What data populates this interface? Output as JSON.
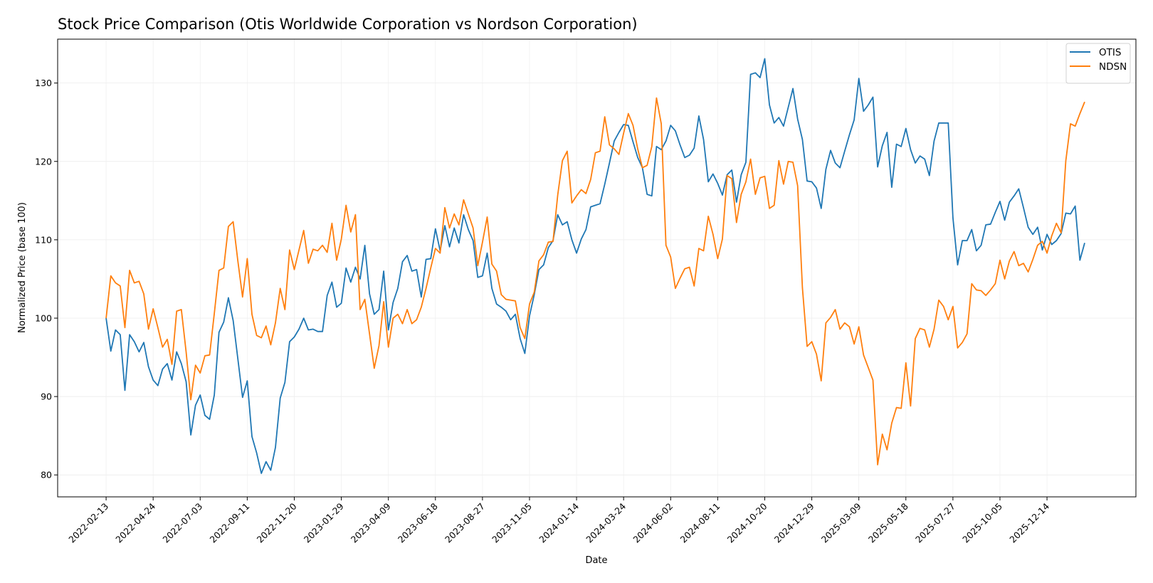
{
  "chart_data": {
    "type": "line",
    "title": "Stock Price Comparison (Otis Worldwide Corporation vs Nordson Corporation)",
    "xlabel": "Date",
    "ylabel": "Normalized Price (base 100)",
    "x_start": "2022-02-13",
    "x_frequency": "weekly",
    "x_tick_labels": [
      "2022-02-13",
      "2022-04-24",
      "2022-07-03",
      "2022-09-11",
      "2022-11-20",
      "2023-01-29",
      "2023-04-09",
      "2023-06-18",
      "2023-08-27",
      "2023-11-05",
      "2024-01-14",
      "2024-03-24",
      "2024-06-02",
      "2024-08-11",
      "2024-10-20",
      "2024-12-29",
      "2025-03-09",
      "2025-05-18",
      "2025-07-27",
      "2025-10-05",
      "2025-12-14"
    ],
    "x_tick_interval_weeks": 10,
    "y_ticks": [
      80,
      90,
      100,
      110,
      120,
      130
    ],
    "ylim": [
      77.2,
      135.6
    ],
    "xlim_weeks": [
      -10.3,
      218.9
    ],
    "grid": true,
    "legend_position": "top-right",
    "series": [
      {
        "name": "OTIS",
        "color": "#1f77b4",
        "values": [
          100,
          95.8,
          98.5,
          97.9,
          90.8,
          97.9,
          97.0,
          95.7,
          96.9,
          93.8,
          92.1,
          91.4,
          93.5,
          94.2,
          92.1,
          95.7,
          94.2,
          91.9,
          85.1,
          88.9,
          90.2,
          87.6,
          87.1,
          90.2,
          98.2,
          99.5,
          102.6,
          99.7,
          94.8,
          89.9,
          92.0,
          84.9,
          82.8,
          80.2,
          81.7,
          80.6,
          83.5,
          89.8,
          91.8,
          97.0,
          97.6,
          98.6,
          100.0,
          98.5,
          98.6,
          98.3,
          98.3,
          102.9,
          104.6,
          101.4,
          101.9,
          106.4,
          104.6,
          106.5,
          105.0,
          109.3,
          103.1,
          100.5,
          101.1,
          106.0,
          98.5,
          102.0,
          103.8,
          107.2,
          108.0,
          106.0,
          106.2,
          102.7,
          107.5,
          107.6,
          111.4,
          108.6,
          111.8,
          109.1,
          111.5,
          109.6,
          113.2,
          111.3,
          109.9,
          105.2,
          105.4,
          108.3,
          103.8,
          101.8,
          101.4,
          100.9,
          99.8,
          100.5,
          97.4,
          95.5,
          100.3,
          103.0,
          106.2,
          106.8,
          109.0,
          109.9,
          113.2,
          111.9,
          112.3,
          110.0,
          108.3,
          110.1,
          111.3,
          114.2,
          114.4,
          114.6,
          117.1,
          119.8,
          122.6,
          123.7,
          124.7,
          124.6,
          122.5,
          120.5,
          119.2,
          115.8,
          115.6,
          121.9,
          121.5,
          122.6,
          124.6,
          123.9,
          122.1,
          120.5,
          120.8,
          121.7,
          125.8,
          122.8,
          117.4,
          118.4,
          117.2,
          115.7,
          118.3,
          118.9,
          114.8,
          118.3,
          119.9,
          131.1,
          131.3,
          130.7,
          133.1,
          127.2,
          124.9,
          125.6,
          124.5,
          126.9,
          129.3,
          125.4,
          122.8,
          117.5,
          117.4,
          116.6,
          114.0,
          119.0,
          121.4,
          119.8,
          119.2,
          121.3,
          123.4,
          125.3,
          130.6,
          126.4,
          127.2,
          128.2,
          119.3,
          122.0,
          123.7,
          116.7,
          122.2,
          121.9,
          124.2,
          121.5,
          119.8,
          120.7,
          120.3,
          118.2,
          122.6,
          124.9,
          124.9,
          124.9,
          112.8,
          106.8,
          109.9,
          109.9,
          111.3,
          108.6,
          109.3,
          111.9,
          112.0,
          113.5,
          114.9,
          112.5,
          114.8,
          115.6,
          116.5,
          114.1,
          111.6,
          110.7,
          111.6,
          108.7,
          110.7,
          109.4,
          109.9,
          110.8,
          113.4,
          113.3,
          114.3,
          107.4,
          109.6
        ]
      },
      {
        "name": "NDSN",
        "color": "#ff7f0e",
        "values": [
          100,
          105.4,
          104.5,
          104.1,
          98.8,
          106.1,
          104.5,
          104.7,
          103.1,
          98.6,
          101.2,
          98.8,
          96.3,
          97.3,
          94.1,
          100.9,
          101.1,
          95.7,
          89.6,
          94.0,
          93.0,
          95.2,
          95.3,
          100.6,
          106.1,
          106.4,
          111.7,
          112.3,
          107.3,
          102.7,
          107.6,
          100.5,
          97.8,
          97.5,
          99.0,
          96.6,
          99.4,
          103.8,
          101.1,
          108.7,
          106.2,
          108.7,
          111.2,
          107.0,
          108.8,
          108.6,
          109.3,
          108.4,
          112.1,
          107.4,
          110.1,
          114.4,
          111.0,
          113.2,
          101.1,
          102.4,
          98.0,
          93.6,
          96.5,
          102.1,
          96.3,
          100.0,
          100.5,
          99.3,
          101.1,
          99.3,
          99.8,
          101.4,
          103.8,
          106.4,
          108.9,
          108.3,
          114.1,
          111.5,
          113.3,
          111.9,
          115.1,
          113.3,
          111.5,
          106.7,
          109.7,
          112.9,
          106.9,
          106.0,
          103.0,
          102.4,
          102.3,
          102.2,
          98.8,
          97.4,
          101.8,
          103.3,
          107.3,
          108.1,
          109.7,
          109.8,
          115.7,
          120.1,
          121.3,
          114.7,
          115.6,
          116.4,
          115.9,
          117.7,
          121.1,
          121.3,
          125.7,
          122.1,
          121.6,
          120.9,
          123.6,
          126.1,
          124.6,
          121.6,
          119.2,
          119.5,
          121.9,
          128.1,
          124.8,
          109.3,
          107.8,
          103.8,
          105.1,
          106.3,
          106.5,
          104.1,
          108.9,
          108.6,
          113.0,
          110.7,
          107.6,
          110.1,
          118.2,
          117.8,
          112.2,
          115.8,
          117.4,
          120.3,
          115.8,
          117.9,
          118.1,
          114.0,
          114.4,
          120.1,
          117.1,
          120.0,
          119.9,
          116.9,
          103.9,
          96.4,
          97.0,
          95.4,
          92.0,
          99.4,
          100.1,
          101.1,
          98.6,
          99.4,
          98.9,
          96.7,
          98.9,
          95.3,
          93.7,
          92.1,
          81.3,
          85.2,
          83.2,
          86.6,
          88.6,
          88.5,
          94.3,
          88.8,
          97.4,
          98.7,
          98.5,
          96.3,
          98.6,
          102.3,
          101.5,
          99.8,
          101.5,
          96.2,
          96.9,
          98.0,
          104.4,
          103.6,
          103.5,
          102.9,
          103.6,
          104.4,
          107.4,
          105.0,
          107.3,
          108.5,
          106.7,
          107.0,
          105.9,
          107.5,
          109.3,
          109.8,
          108.3,
          110.5,
          112.1,
          110.9,
          120.1,
          124.8,
          124.5,
          126.1,
          127.6
        ]
      }
    ]
  }
}
